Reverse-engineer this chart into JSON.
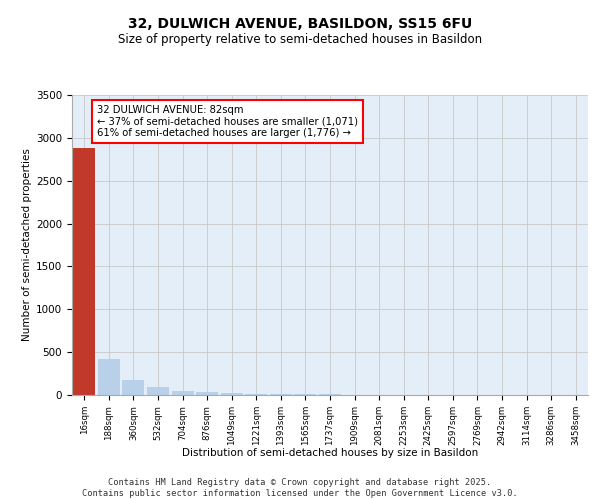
{
  "title1": "32, DULWICH AVENUE, BASILDON, SS15 6FU",
  "title2": "Size of property relative to semi-detached houses in Basildon",
  "xlabel": "Distribution of semi-detached houses by size in Basildon",
  "ylabel": "Number of semi-detached properties",
  "annotation_line1": "32 DULWICH AVENUE: 82sqm",
  "annotation_line2": "← 37% of semi-detached houses are smaller (1,071)",
  "annotation_line3": "61% of semi-detached houses are larger (1,776) →",
  "footer": "Contains HM Land Registry data © Crown copyright and database right 2025.\nContains public sector information licensed under the Open Government Licence v3.0.",
  "bin_labels": [
    "16sqm",
    "188sqm",
    "360sqm",
    "532sqm",
    "704sqm",
    "876sqm",
    "1049sqm",
    "1221sqm",
    "1393sqm",
    "1565sqm",
    "1737sqm",
    "1909sqm",
    "2081sqm",
    "2253sqm",
    "2425sqm",
    "2597sqm",
    "2769sqm",
    "2942sqm",
    "3114sqm",
    "3286sqm",
    "3458sqm"
  ],
  "bar_values": [
    2880,
    420,
    180,
    90,
    50,
    30,
    20,
    15,
    10,
    8,
    6,
    5,
    4,
    3,
    2,
    2,
    1,
    1,
    1,
    0,
    0
  ],
  "bar_colors_default": "#b8d0e8",
  "bar_color_highlight": "#c0392b",
  "highlight_index": 0,
  "ylim": [
    0,
    3500
  ],
  "yticks": [
    0,
    500,
    1000,
    1500,
    2000,
    2500,
    3000,
    3500
  ]
}
